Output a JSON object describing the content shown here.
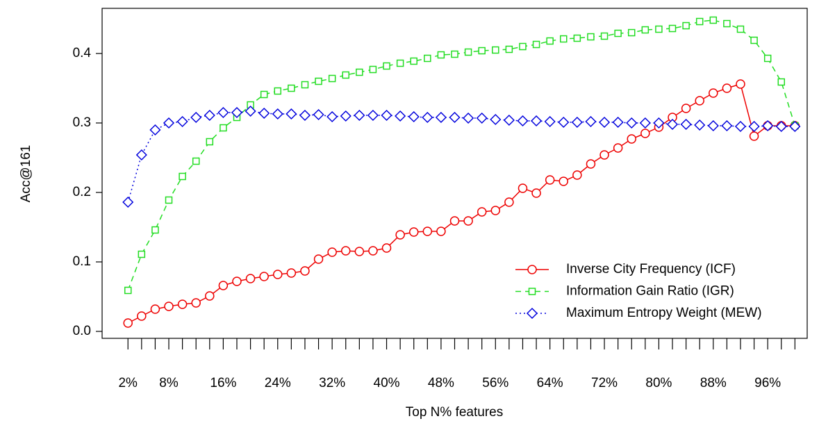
{
  "chart_data": {
    "type": "line",
    "xlabel": "Top N% features",
    "ylabel": "Acc@161",
    "x": [
      2,
      4,
      6,
      8,
      10,
      12,
      14,
      16,
      18,
      20,
      22,
      24,
      26,
      28,
      30,
      32,
      34,
      36,
      38,
      40,
      42,
      44,
      46,
      48,
      50,
      52,
      54,
      56,
      58,
      60,
      62,
      64,
      66,
      68,
      70,
      72,
      74,
      76,
      78,
      80,
      82,
      84,
      86,
      88,
      90,
      92,
      94,
      96,
      98,
      100
    ],
    "xlim": [
      -1.8,
      101.8
    ],
    "xticks": [
      {
        "value": 2,
        "label": "2%"
      },
      {
        "value": 4,
        "label": null
      },
      {
        "value": 6,
        "label": null
      },
      {
        "value": 8,
        "label": "8%"
      },
      {
        "value": 10,
        "label": null
      },
      {
        "value": 12,
        "label": null
      },
      {
        "value": 14,
        "label": null
      },
      {
        "value": 16,
        "label": "16%"
      },
      {
        "value": 18,
        "label": null
      },
      {
        "value": 20,
        "label": null
      },
      {
        "value": 22,
        "label": null
      },
      {
        "value": 24,
        "label": "24%"
      },
      {
        "value": 26,
        "label": null
      },
      {
        "value": 28,
        "label": null
      },
      {
        "value": 30,
        "label": null
      },
      {
        "value": 32,
        "label": "32%"
      },
      {
        "value": 34,
        "label": null
      },
      {
        "value": 36,
        "label": null
      },
      {
        "value": 38,
        "label": null
      },
      {
        "value": 40,
        "label": "40%"
      },
      {
        "value": 42,
        "label": null
      },
      {
        "value": 44,
        "label": null
      },
      {
        "value": 46,
        "label": null
      },
      {
        "value": 48,
        "label": "48%"
      },
      {
        "value": 50,
        "label": null
      },
      {
        "value": 52,
        "label": null
      },
      {
        "value": 54,
        "label": null
      },
      {
        "value": 56,
        "label": "56%"
      },
      {
        "value": 58,
        "label": null
      },
      {
        "value": 60,
        "label": null
      },
      {
        "value": 62,
        "label": null
      },
      {
        "value": 64,
        "label": "64%"
      },
      {
        "value": 66,
        "label": null
      },
      {
        "value": 68,
        "label": null
      },
      {
        "value": 70,
        "label": null
      },
      {
        "value": 72,
        "label": "72%"
      },
      {
        "value": 74,
        "label": null
      },
      {
        "value": 76,
        "label": null
      },
      {
        "value": 78,
        "label": null
      },
      {
        "value": 80,
        "label": "80%"
      },
      {
        "value": 82,
        "label": null
      },
      {
        "value": 84,
        "label": null
      },
      {
        "value": 86,
        "label": null
      },
      {
        "value": 88,
        "label": "88%"
      },
      {
        "value": 90,
        "label": null
      },
      {
        "value": 92,
        "label": null
      },
      {
        "value": 94,
        "label": null
      },
      {
        "value": 96,
        "label": "96%"
      },
      {
        "value": 98,
        "label": null
      },
      {
        "value": 100,
        "label": null
      }
    ],
    "ylim": [
      -0.01,
      0.465
    ],
    "yticks": [
      {
        "value": 0,
        "label": "0.0"
      },
      0.1,
      0.2,
      0.3,
      0.4
    ],
    "legend": "bottom-right",
    "series": [
      {
        "name": "Inverse City Frequency (ICF)",
        "color": "#ee0000",
        "line": "solid",
        "marker": "circle",
        "values": [
          0.012,
          0.022,
          0.032,
          0.036,
          0.039,
          0.041,
          0.051,
          0.066,
          0.072,
          0.076,
          0.079,
          0.082,
          0.084,
          0.087,
          0.104,
          0.114,
          0.116,
          0.115,
          0.116,
          0.12,
          0.139,
          0.143,
          0.144,
          0.144,
          0.159,
          0.159,
          0.172,
          0.174,
          0.186,
          0.206,
          0.199,
          0.218,
          0.216,
          0.225,
          0.241,
          0.254,
          0.264,
          0.277,
          0.285,
          0.294,
          0.308,
          0.321,
          0.332,
          0.343,
          0.35,
          0.356,
          0.281,
          0.296,
          0.296,
          0.296
        ]
      },
      {
        "name": "Information Gain Ratio (IGR)",
        "color": "#22dd22",
        "line": "dashed",
        "marker": "square",
        "values": [
          0.059,
          0.111,
          0.146,
          0.189,
          0.223,
          0.245,
          0.273,
          0.293,
          0.308,
          0.326,
          0.341,
          0.346,
          0.35,
          0.355,
          0.36,
          0.364,
          0.369,
          0.373,
          0.377,
          0.382,
          0.386,
          0.389,
          0.393,
          0.398,
          0.399,
          0.402,
          0.404,
          0.405,
          0.406,
          0.41,
          0.413,
          0.418,
          0.421,
          0.422,
          0.424,
          0.425,
          0.429,
          0.43,
          0.434,
          0.435,
          0.436,
          0.44,
          0.446,
          0.448,
          0.443,
          0.435,
          0.419,
          0.393,
          0.359,
          0.296
        ]
      },
      {
        "name": "Maximum Entropy Weight (MEW)",
        "color": "#0000dd",
        "line": "dotted",
        "marker": "diamond",
        "values": [
          0.186,
          0.254,
          0.29,
          0.3,
          0.302,
          0.308,
          0.311,
          0.315,
          0.315,
          0.317,
          0.314,
          0.313,
          0.313,
          0.311,
          0.312,
          0.309,
          0.31,
          0.311,
          0.311,
          0.311,
          0.31,
          0.309,
          0.308,
          0.308,
          0.308,
          0.307,
          0.307,
          0.305,
          0.304,
          0.303,
          0.303,
          0.302,
          0.301,
          0.301,
          0.302,
          0.301,
          0.301,
          0.3,
          0.3,
          0.3,
          0.298,
          0.298,
          0.297,
          0.296,
          0.296,
          0.295,
          0.295,
          0.296,
          0.295,
          0.295
        ]
      }
    ]
  }
}
